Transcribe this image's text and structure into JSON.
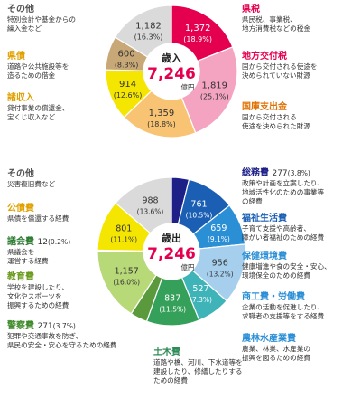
{
  "revenue": {
    "center": {
      "title": "歳入",
      "total": "7,246",
      "unit": "億円"
    },
    "slices": [
      {
        "key": "prefectural_tax",
        "name": "県税",
        "value": 1372,
        "value_label": "1,372",
        "pct_label": "(18.9%)",
        "color": "#e5004f",
        "text_color": "#ffffff",
        "desc": "県民税、事業税、\n地方消費税などの税金"
      },
      {
        "key": "local_allocation_tax",
        "name": "地方交付税",
        "value": 1819,
        "value_label": "1,819",
        "pct_label": "(25.1%)",
        "color": "#f4a4c0",
        "text_color": "#333333",
        "desc": "国から交付される使途を\n決められていない財源"
      },
      {
        "key": "national_treasury",
        "name": "国庫支出金",
        "value": 1359,
        "value_label": "1,359",
        "pct_label": "(18.8%)",
        "color": "#f8c373",
        "text_color": "#333333",
        "desc": "国から交付される\n使途を決められた財源"
      },
      {
        "key": "misc_income",
        "name": "諸収入",
        "value": 914,
        "value_label": "914",
        "pct_label": "(12.6%)",
        "color": "#f4e600",
        "text_color": "#333333",
        "desc": "貸付事業の償還金、\n宝くじ収入など"
      },
      {
        "key": "prefectural_bonds",
        "name": "県債",
        "value": 600,
        "value_label": "600",
        "pct_label": "(8.3%)",
        "color": "#c9a877",
        "text_color": "#333333",
        "desc": "道路や公共施設等を\n造るための借金"
      },
      {
        "key": "other",
        "name": "その他",
        "value": 1182,
        "value_label": "1,182",
        "pct_label": "(16.3%)",
        "color": "#dadada",
        "text_color": "#333333",
        "desc": "特別会計や基金からの\n繰入金など"
      }
    ]
  },
  "expenditure": {
    "center": {
      "title": "歳出",
      "total": "7,246",
      "unit": "億円"
    },
    "slices": [
      {
        "key": "general_affairs",
        "name": "総務費",
        "value": 277,
        "value_label": "",
        "pct_label": "",
        "amount_label": "277",
        "amount_pct": "(3.8%)",
        "color": "#1d2087",
        "text_color": "#ffffff",
        "desc": "政策や計画を立案したり、\n地域活性化のための事業等\nの経費"
      },
      {
        "key": "welfare",
        "name": "福祉生活費",
        "value": 761,
        "value_label": "761",
        "pct_label": "(10.5%)",
        "color": "#1a5fb4",
        "text_color": "#ffffff",
        "desc": "子育て支援や高齢者、\n障がい者福祉のための経費"
      },
      {
        "key": "health_environment",
        "name": "保健環境費",
        "value": 659,
        "value_label": "659",
        "pct_label": "(9.1%)",
        "color": "#2b8fd6",
        "text_color": "#ffffff",
        "desc": "健康増進や食の安全・安心、\n環境保全のための経費"
      },
      {
        "key": "commerce_labor",
        "name": "商工費・労働費",
        "value": 956,
        "value_label": "956",
        "pct_label": "(13.2%)",
        "color": "#a6cfee",
        "text_color": "#333333",
        "desc": "企業の活動を促進したり、\n求職者の支援等をする経費"
      },
      {
        "key": "agriculture",
        "name": "農林水産業費",
        "value": 527,
        "value_label": "527",
        "pct_label": "(7.3%)",
        "color": "#3eb3b8",
        "text_color": "#ffffff",
        "desc": "農業、林業、水産業の\n振興を図るための経費"
      },
      {
        "key": "public_works",
        "name": "土木費",
        "value": 837,
        "value_label": "837",
        "pct_label": "(11.5%)",
        "color": "#35a05a",
        "text_color": "#ffffff",
        "desc": "道路や橋、河川、下水道等を\n建設したり、修繕したりする\nための経費"
      },
      {
        "key": "police",
        "name": "警察費",
        "value": 271,
        "value_label": "",
        "pct_label": "",
        "amount_label": "271",
        "amount_pct": "(3.7%)",
        "color": "#5a9a3c",
        "text_color": "#ffffff",
        "desc": "犯罪や交通事故を防ぎ、\n県民の安全・安心を守るための経費"
      },
      {
        "key": "education",
        "name": "教育費",
        "value": 1157,
        "value_label": "1,157",
        "pct_label": "(16.0%)",
        "color": "#b8d977",
        "text_color": "#333333",
        "desc": "学校を建設したり、\n文化やスポーツを\n振興するための経費"
      },
      {
        "key": "assembly",
        "name": "議会費",
        "value": 12,
        "value_label": "",
        "pct_label": "",
        "amount_label": "12",
        "amount_pct": "(0.2%)",
        "color": "#2e7d32",
        "text_color": "#333333",
        "desc": "県議会を\n運営する経費"
      },
      {
        "key": "public_debt",
        "name": "公債費",
        "value": 801,
        "value_label": "801",
        "pct_label": "(11.1%)",
        "color": "#f4e600",
        "text_color": "#333333",
        "desc": "県債を償還する経費"
      },
      {
        "key": "other",
        "name": "その他",
        "value": 988,
        "value_label": "988",
        "pct_label": "(13.6%)",
        "color": "#dadada",
        "text_color": "#333333",
        "desc": "災害復旧費など"
      }
    ]
  },
  "chart_data": [
    {
      "type": "pie",
      "title": "歳入",
      "total": 7246,
      "unit": "億円",
      "categories": [
        "県税",
        "地方交付税",
        "国庫支出金",
        "諸収入",
        "県債",
        "その他"
      ],
      "values": [
        1372,
        1819,
        1359,
        914,
        600,
        1182
      ],
      "percentages": [
        18.9,
        25.1,
        18.8,
        12.6,
        8.3,
        16.3
      ]
    },
    {
      "type": "pie",
      "title": "歳出",
      "total": 7246,
      "unit": "億円",
      "categories": [
        "総務費",
        "福祉生活費",
        "保健環境費",
        "商工費・労働費",
        "農林水産業費",
        "土木費",
        "警察費",
        "教育費",
        "議会費",
        "公債費",
        "その他"
      ],
      "values": [
        277,
        761,
        659,
        956,
        527,
        837,
        271,
        1157,
        12,
        801,
        988
      ],
      "percentages": [
        3.8,
        10.5,
        9.1,
        13.2,
        7.3,
        11.5,
        3.7,
        16.0,
        0.2,
        11.1,
        13.6
      ]
    }
  ]
}
